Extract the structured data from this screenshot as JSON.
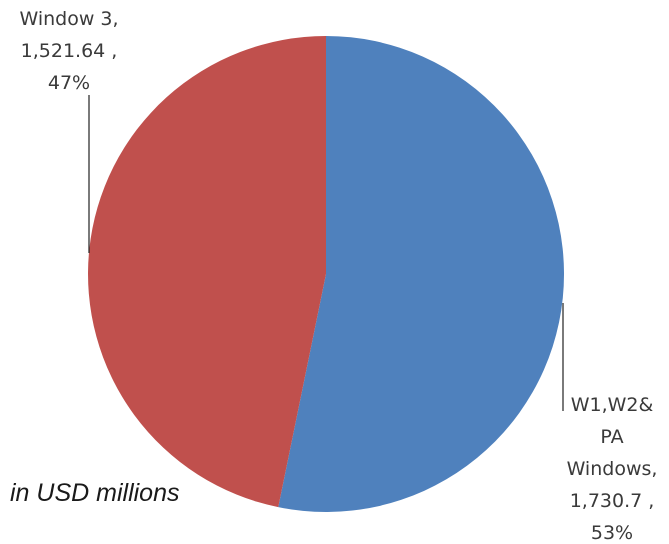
{
  "chart_data": {
    "type": "pie",
    "slices": [
      {
        "name": "W1,W2& PA Windows",
        "value": 1730.7,
        "percent": 53,
        "color": "#4f81bd",
        "label_lines": [
          "W1,W2&",
          "PA",
          "Windows,",
          "1,730.7 ,",
          "53%"
        ]
      },
      {
        "name": "Window 3",
        "value": 1521.64,
        "percent": 47,
        "color": "#c0504d",
        "label_lines": [
          "Window 3,",
          "1,521.64 ,",
          "47%"
        ]
      }
    ],
    "start_angle": "12 o'clock",
    "direction": "clockwise",
    "legend": "none"
  },
  "note": "in USD millions"
}
